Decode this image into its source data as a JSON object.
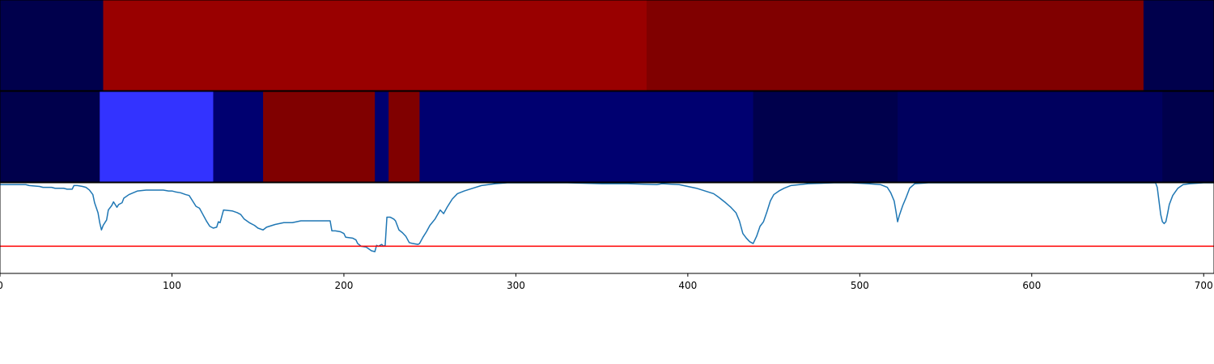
{
  "chart_data": [
    {
      "type": "heatmap",
      "panel": "top-strip",
      "xlim": [
        0,
        706
      ],
      "segments": [
        {
          "start": 0,
          "end": 60,
          "color": "#00004c"
        },
        {
          "start": 60,
          "end": 376,
          "color": "#990000"
        },
        {
          "start": 376,
          "end": 665,
          "color": "#800000"
        },
        {
          "start": 665,
          "end": 706,
          "color": "#00004c"
        }
      ]
    },
    {
      "type": "heatmap",
      "panel": "middle-strip",
      "xlim": [
        0,
        706
      ],
      "segments": [
        {
          "start": 0,
          "end": 58,
          "color": "#00004c"
        },
        {
          "start": 58,
          "end": 124,
          "color": "#3333ff"
        },
        {
          "start": 124,
          "end": 153,
          "color": "#000070"
        },
        {
          "start": 153,
          "end": 218,
          "color": "#800000"
        },
        {
          "start": 218,
          "end": 226,
          "color": "#000070"
        },
        {
          "start": 226,
          "end": 244,
          "color": "#800000"
        },
        {
          "start": 244,
          "end": 438,
          "color": "#000070"
        },
        {
          "start": 438,
          "end": 522,
          "color": "#00004c"
        },
        {
          "start": 522,
          "end": 676,
          "color": "#00005e"
        },
        {
          "start": 676,
          "end": 706,
          "color": "#00004c"
        }
      ]
    },
    {
      "type": "line",
      "panel": "bottom-line",
      "xlim": [
        0,
        706
      ],
      "ylim": [
        -1.0,
        0.0
      ],
      "threshold": {
        "y": -0.7,
        "color": "#ff0000"
      },
      "x_ticks": [
        0,
        100,
        200,
        300,
        400,
        500,
        600,
        700
      ],
      "x_tick_labels": [
        "0",
        "100",
        "200",
        "300",
        "400",
        "500",
        "600",
        "700"
      ],
      "grid": false,
      "series": [
        {
          "color": "#1f77b4",
          "points": [
            [
              0,
              -0.02
            ],
            [
              15,
              -0.02
            ],
            [
              17,
              -0.03
            ],
            [
              23,
              -0.04
            ],
            [
              25,
              -0.05
            ],
            [
              30,
              -0.05
            ],
            [
              32,
              -0.06
            ],
            [
              37,
              -0.06
            ],
            [
              39,
              -0.07
            ],
            [
              42,
              -0.07
            ],
            [
              43,
              -0.03
            ],
            [
              45,
              -0.03
            ],
            [
              48,
              -0.04
            ],
            [
              50,
              -0.05
            ],
            [
              52,
              -0.08
            ],
            [
              54,
              -0.13
            ],
            [
              55,
              -0.22
            ],
            [
              57,
              -0.33
            ],
            [
              58,
              -0.44
            ],
            [
              59,
              -0.52
            ],
            [
              60,
              -0.47
            ],
            [
              62,
              -0.41
            ],
            [
              63,
              -0.3
            ],
            [
              65,
              -0.25
            ],
            [
              66,
              -0.21
            ],
            [
              68,
              -0.27
            ],
            [
              69,
              -0.24
            ],
            [
              71,
              -0.22
            ],
            [
              72,
              -0.17
            ],
            [
              75,
              -0.13
            ],
            [
              80,
              -0.09
            ],
            [
              85,
              -0.08
            ],
            [
              90,
              -0.08
            ],
            [
              95,
              -0.08
            ],
            [
              98,
              -0.09
            ],
            [
              100,
              -0.09
            ],
            [
              102,
              -0.1
            ],
            [
              105,
              -0.11
            ],
            [
              108,
              -0.13
            ],
            [
              110,
              -0.14
            ],
            [
              112,
              -0.2
            ],
            [
              114,
              -0.26
            ],
            [
              116,
              -0.28
            ],
            [
              118,
              -0.35
            ],
            [
              120,
              -0.42
            ],
            [
              122,
              -0.48
            ],
            [
              124,
              -0.5
            ],
            [
              126,
              -0.49
            ],
            [
              127,
              -0.43
            ],
            [
              128,
              -0.44
            ],
            [
              130,
              -0.3
            ],
            [
              135,
              -0.31
            ],
            [
              138,
              -0.33
            ],
            [
              140,
              -0.35
            ],
            [
              142,
              -0.4
            ],
            [
              145,
              -0.44
            ],
            [
              148,
              -0.47
            ],
            [
              150,
              -0.5
            ],
            [
              153,
              -0.52
            ],
            [
              155,
              -0.49
            ],
            [
              160,
              -0.46
            ],
            [
              165,
              -0.44
            ],
            [
              170,
              -0.44
            ],
            [
              175,
              -0.42
            ],
            [
              180,
              -0.42
            ],
            [
              185,
              -0.42
            ],
            [
              190,
              -0.42
            ],
            [
              192,
              -0.42
            ],
            [
              193,
              -0.53
            ],
            [
              195,
              -0.53
            ],
            [
              198,
              -0.54
            ],
            [
              200,
              -0.56
            ],
            [
              201,
              -0.6
            ],
            [
              205,
              -0.61
            ],
            [
              207,
              -0.63
            ],
            [
              208,
              -0.67
            ],
            [
              210,
              -0.7
            ],
            [
              213,
              -0.71
            ],
            [
              216,
              -0.75
            ],
            [
              218,
              -0.76
            ],
            [
              219,
              -0.69
            ],
            [
              220,
              -0.7
            ],
            [
              222,
              -0.68
            ],
            [
              223,
              -0.7
            ],
            [
              224,
              -0.69
            ],
            [
              225,
              -0.38
            ],
            [
              227,
              -0.38
            ],
            [
              229,
              -0.4
            ],
            [
              230,
              -0.42
            ],
            [
              232,
              -0.52
            ],
            [
              234,
              -0.55
            ],
            [
              236,
              -0.59
            ],
            [
              238,
              -0.66
            ],
            [
              240,
              -0.67
            ],
            [
              243,
              -0.68
            ],
            [
              244,
              -0.67
            ],
            [
              246,
              -0.6
            ],
            [
              248,
              -0.54
            ],
            [
              250,
              -0.47
            ],
            [
              253,
              -0.4
            ],
            [
              256,
              -0.3
            ],
            [
              258,
              -0.34
            ],
            [
              260,
              -0.27
            ],
            [
              263,
              -0.18
            ],
            [
              266,
              -0.12
            ],
            [
              270,
              -0.09
            ],
            [
              275,
              -0.06
            ],
            [
              280,
              -0.03
            ],
            [
              288,
              -0.01
            ],
            [
              295,
              0.0
            ],
            [
              315,
              0.0
            ],
            [
              330,
              0.0
            ],
            [
              350,
              -0.01
            ],
            [
              365,
              -0.01
            ],
            [
              382,
              -0.02
            ],
            [
              385,
              -0.01
            ],
            [
              395,
              -0.02
            ],
            [
              400,
              -0.04
            ],
            [
              405,
              -0.06
            ],
            [
              410,
              -0.09
            ],
            [
              415,
              -0.12
            ],
            [
              418,
              -0.16
            ],
            [
              422,
              -0.22
            ],
            [
              425,
              -0.27
            ],
            [
              428,
              -0.33
            ],
            [
              430,
              -0.42
            ],
            [
              432,
              -0.56
            ],
            [
              434,
              -0.61
            ],
            [
              436,
              -0.65
            ],
            [
              438,
              -0.67
            ],
            [
              440,
              -0.59
            ],
            [
              442,
              -0.48
            ],
            [
              444,
              -0.43
            ],
            [
              446,
              -0.32
            ],
            [
              448,
              -0.2
            ],
            [
              450,
              -0.13
            ],
            [
              453,
              -0.09
            ],
            [
              456,
              -0.06
            ],
            [
              460,
              -0.03
            ],
            [
              470,
              -0.01
            ],
            [
              485,
              0.0
            ],
            [
              495,
              0.0
            ],
            [
              505,
              -0.01
            ],
            [
              512,
              -0.02
            ],
            [
              516,
              -0.05
            ],
            [
              518,
              -0.11
            ],
            [
              520,
              -0.2
            ],
            [
              521,
              -0.31
            ],
            [
              522,
              -0.43
            ],
            [
              523,
              -0.36
            ],
            [
              525,
              -0.25
            ],
            [
              527,
              -0.16
            ],
            [
              529,
              -0.06
            ],
            [
              532,
              -0.01
            ],
            [
              540,
              0.0
            ],
            [
              560,
              0.0
            ],
            [
              600,
              0.0
            ],
            [
              640,
              0.0
            ],
            [
              670,
              0.0
            ],
            [
              672,
              0.0
            ],
            [
              673,
              -0.05
            ],
            [
              674,
              -0.2
            ],
            [
              675,
              -0.35
            ],
            [
              676,
              -0.43
            ],
            [
              677,
              -0.45
            ],
            [
              678,
              -0.43
            ],
            [
              679,
              -0.34
            ],
            [
              680,
              -0.24
            ],
            [
              682,
              -0.14
            ],
            [
              685,
              -0.06
            ],
            [
              688,
              -0.02
            ],
            [
              692,
              -0.01
            ],
            [
              700,
              0.0
            ],
            [
              706,
              0.0
            ]
          ]
        }
      ]
    }
  ]
}
